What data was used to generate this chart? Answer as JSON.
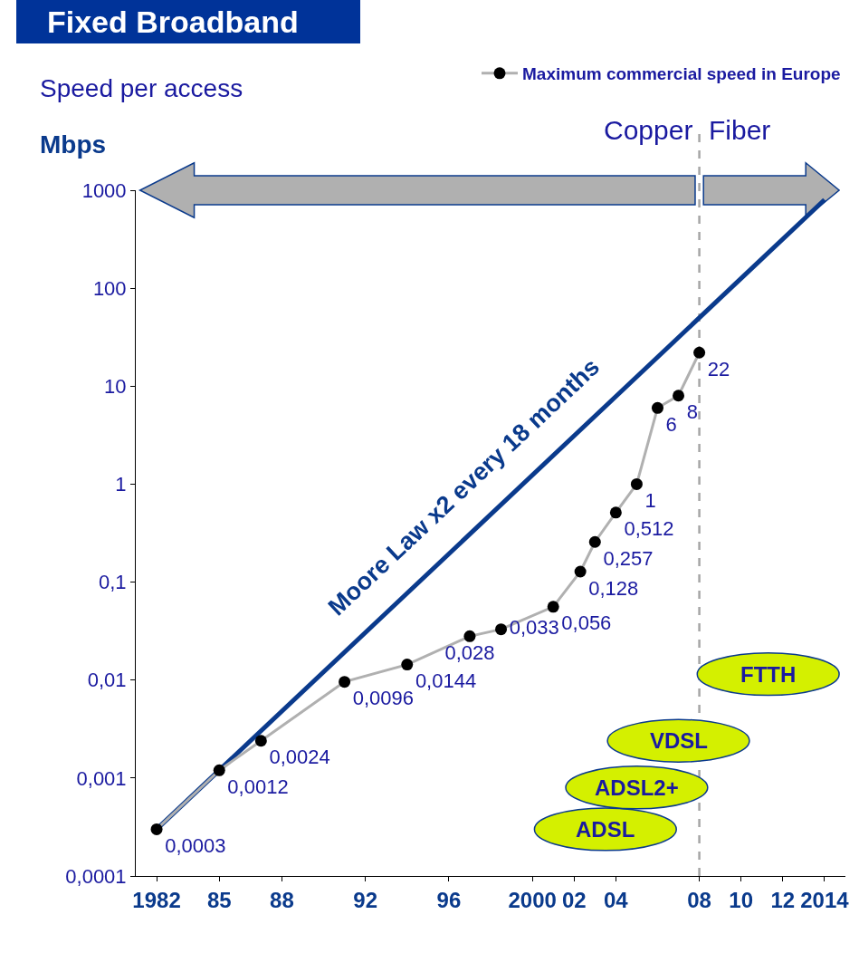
{
  "chart_data": {
    "type": "line",
    "title": "Fixed Broadband",
    "subtitle": "Speed per access",
    "ylabel": "Mbps",
    "log": "y",
    "grid": false,
    "legend": "top right",
    "xlim": [
      1981,
      2015
    ],
    "xticks": [
      1982,
      {
        "value": 1985,
        "label": "85"
      },
      {
        "value": 1988,
        "label": "88"
      },
      {
        "value": 1992,
        "label": "92"
      },
      {
        "value": 1996,
        "label": "96"
      },
      2000,
      {
        "value": 2002,
        "label": "02"
      },
      {
        "value": 2004,
        "label": "04"
      },
      {
        "value": 2008,
        "label": "08"
      },
      {
        "value": 2010,
        "label": "10"
      },
      {
        "value": 2012,
        "label": "12"
      },
      2014
    ],
    "ylim": [
      0.0001,
      1000
    ],
    "yticks": [
      {
        "value": 0.0001,
        "label": "0,0001"
      },
      {
        "value": 0.001,
        "label": "0,001"
      },
      {
        "value": 0.01,
        "label": "0,01"
      },
      {
        "value": 0.1,
        "label": "0,1"
      },
      1,
      10,
      100,
      1000
    ],
    "series": [
      {
        "name": "Moore Law x2 every 18 months",
        "color": "#0a3a8c",
        "marker": "none",
        "x": [
          1982,
          2014
        ],
        "values": [
          0.0003,
          800
        ]
      },
      {
        "name": "Maximum commercial speed in Europe",
        "color": "#b0b0b0",
        "marker": "circle",
        "colors": [
          "#000000",
          "#000000",
          "#000000",
          "#000000",
          "#000000",
          "#000000",
          "#000000",
          "#000000",
          "#000000",
          "#000000",
          "#000000",
          "#000000",
          "#000000",
          "#000000",
          "#000000"
        ],
        "x": [
          1982,
          1985,
          1987,
          1991,
          1994,
          1997,
          1998.5,
          2001,
          2002.3,
          2003,
          2004,
          2005,
          2006,
          2007,
          2008
        ],
        "values": [
          0.0003,
          0.0012,
          0.0024,
          0.0096,
          0.0144,
          0.028,
          0.033,
          0.056,
          0.128,
          0.257,
          0.512,
          1,
          6,
          8,
          22
        ],
        "value_labels": [
          "0,0003",
          "0,0012",
          "0,0024",
          "0,0096",
          "0,0144",
          "0,028",
          "0,033",
          "0,056",
          "0,128",
          "0,257",
          "0,512",
          "1",
          "6",
          "8",
          "22"
        ]
      }
    ],
    "ref_lines": [
      {
        "axis": "x",
        "value": 2008,
        "color": "#a6a6a6",
        "line_style": "dashed"
      }
    ],
    "annotations": [
      "Copper",
      "Fiber",
      "ADSL",
      "ADSL2+",
      "VDSL",
      "FTTH"
    ]
  }
}
